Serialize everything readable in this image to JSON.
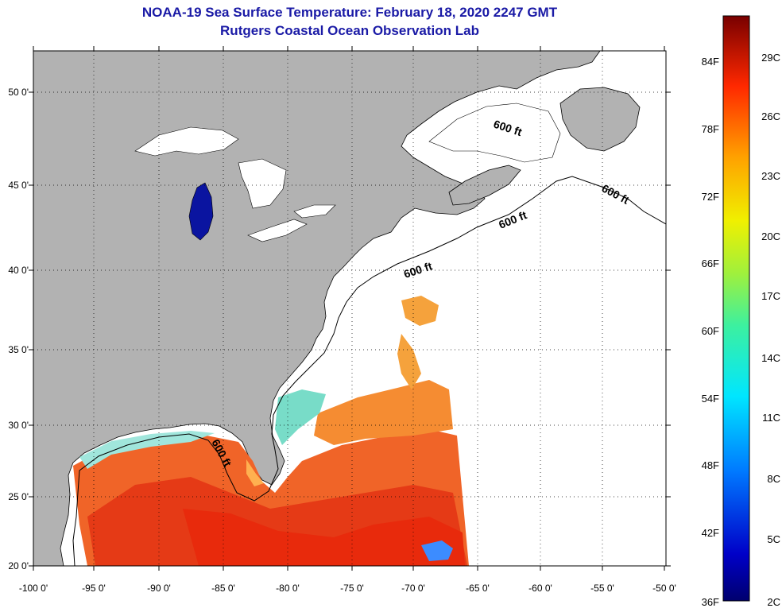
{
  "header": {
    "title": "NOAA-19 Sea Surface Temperature:  February 18, 2020 2247 GMT",
    "subtitle": "Rutgers Coastal Ocean Observation Lab"
  },
  "axes": {
    "longitude_ticks": [
      "-100 0'",
      "-95 0'",
      "-90 0'",
      "-85 0'",
      "-80 0'",
      "-75 0'",
      "-70 0'",
      "-65 0'",
      "-60 0'",
      "-55 0'",
      "-50 0'"
    ],
    "latitude_ticks": [
      "50 0'",
      "45 0'",
      "40 0'",
      "35 0'",
      "30 0'",
      "25 0'",
      "20 0'"
    ]
  },
  "contour_labels": [
    "600 ft",
    "600 ft",
    "600 ft",
    "600 ft",
    "600 ft"
  ],
  "colorbar": {
    "fahrenheit_labels": [
      "84F",
      "78F",
      "72F",
      "66F",
      "60F",
      "54F",
      "48F",
      "42F",
      "36F"
    ],
    "celsius_labels": [
      "29C",
      "26C",
      "23C",
      "20C",
      "17C",
      "14C",
      "11C",
      "8C",
      "5C",
      "2C"
    ],
    "min_celsius": 2,
    "max_celsius": 31
  },
  "colors": {
    "land": "#b2b2b2",
    "title": "#1a1aa6",
    "lake_cold": "#0a14a0"
  }
}
